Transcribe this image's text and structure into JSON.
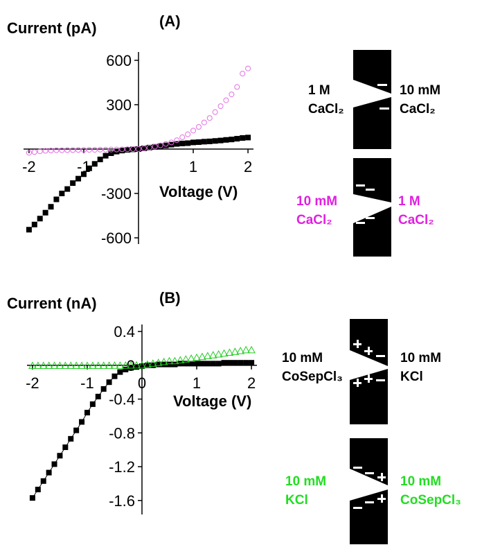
{
  "chart_data": [
    {
      "type": "scatter",
      "panel_label": "(A)",
      "ylabel": "Current (pA)",
      "xlabel": "Voltage (V)",
      "x": [
        -2,
        -1.9,
        -1.8,
        -1.7,
        -1.6,
        -1.5,
        -1.4,
        -1.3,
        -1.2,
        -1.1,
        -1,
        -0.9,
        -0.8,
        -0.7,
        -0.6,
        -0.5,
        -0.4,
        -0.3,
        -0.2,
        -0.1,
        0,
        0.1,
        0.2,
        0.3,
        0.4,
        0.5,
        0.6,
        0.7,
        0.8,
        0.9,
        1,
        1.1,
        1.2,
        1.3,
        1.4,
        1.5,
        1.6,
        1.7,
        1.8,
        1.9,
        2
      ],
      "series": [
        {
          "color": "#000000",
          "marker": "square",
          "filled": true,
          "line": false,
          "values": [
            -545,
            -510,
            -470,
            -430,
            -390,
            -340,
            -300,
            -270,
            -230,
            -200,
            -170,
            -130,
            -100,
            -70,
            -45,
            -28,
            -17,
            -10,
            -5,
            -2,
            0,
            5,
            10,
            15,
            20,
            25,
            30,
            35,
            38,
            40,
            45,
            47,
            50,
            52,
            55,
            58,
            62,
            65,
            70,
            75,
            78
          ]
        },
        {
          "color": "#e070e0",
          "marker": "circle",
          "filled": false,
          "line": false,
          "values": [
            -25,
            -20,
            -15,
            -12,
            -10,
            -8,
            -8,
            -7,
            -7,
            -6,
            -6,
            -5,
            -5,
            -4,
            -4,
            -3,
            -3,
            -2,
            -1,
            0,
            0,
            5,
            10,
            17,
            25,
            35,
            45,
            60,
            80,
            100,
            125,
            150,
            180,
            210,
            250,
            290,
            330,
            370,
            420,
            510,
            545
          ]
        }
      ],
      "xlim": [
        -2.1,
        2.1
      ],
      "xticks": [
        -2,
        -1,
        1,
        2
      ],
      "ylim": [
        -600,
        600
      ],
      "yticks": [
        600,
        300,
        -300,
        -600
      ],
      "diagrams": [
        {
          "color": "#000000",
          "left": [
            "1 M",
            "CaCl₂"
          ],
          "right": [
            "10 mM",
            "CaCl₂"
          ]
        },
        {
          "color": "#e020e0",
          "left": [
            "10 mM",
            "CaCl₂"
          ],
          "right": [
            "1 M",
            "CaCl₂"
          ]
        }
      ]
    },
    {
      "type": "scatter",
      "panel_label": "(B)",
      "ylabel": "Current (nA)",
      "xlabel": "Voltage (V)",
      "x": [
        -2,
        -1.9,
        -1.8,
        -1.7,
        -1.6,
        -1.5,
        -1.4,
        -1.3,
        -1.2,
        -1.1,
        -1,
        -0.9,
        -0.8,
        -0.7,
        -0.6,
        -0.5,
        -0.4,
        -0.3,
        -0.2,
        -0.1,
        0,
        0.1,
        0.2,
        0.3,
        0.4,
        0.5,
        0.6,
        0.7,
        0.8,
        0.9,
        1,
        1.1,
        1.2,
        1.3,
        1.4,
        1.5,
        1.6,
        1.7,
        1.8,
        1.9,
        2
      ],
      "series": [
        {
          "color": "#000000",
          "marker": "square",
          "filled": true,
          "line": true,
          "values": [
            -1.57,
            -1.47,
            -1.37,
            -1.27,
            -1.17,
            -1.07,
            -0.97,
            -0.87,
            -0.77,
            -0.67,
            -0.56,
            -0.46,
            -0.37,
            -0.28,
            -0.2,
            -0.13,
            -0.08,
            -0.05,
            -0.03,
            -0.02,
            -0.01,
            0,
            0,
            0.01,
            0.01,
            0.01,
            0.01,
            0.02,
            0.02,
            0.02,
            0.02,
            0.02,
            0.02,
            0.02,
            0.02,
            0.03,
            0.03,
            0.03,
            0.03,
            0.03,
            0.03
          ]
        },
        {
          "color": "#22cc22",
          "marker": "triangle",
          "filled": false,
          "line": false,
          "values": [
            -0.005,
            -0.005,
            -0.005,
            -0.005,
            -0.005,
            -0.005,
            -0.005,
            -0.005,
            -0.005,
            -0.005,
            -0.005,
            -0.005,
            -0.005,
            -0.004,
            -0.004,
            -0.003,
            -0.003,
            -0.002,
            -0.001,
            0,
            0,
            0.01,
            0.02,
            0.03,
            0.04,
            0.05,
            0.05,
            0.06,
            0.07,
            0.08,
            0.09,
            0.1,
            0.11,
            0.12,
            0.13,
            0.14,
            0.15,
            0.16,
            0.17,
            0.18,
            0.18
          ]
        }
      ],
      "xlim": [
        -2.1,
        2.1
      ],
      "xticks": [
        -2,
        -1,
        0,
        1,
        2
      ],
      "ylim": [
        -1.7,
        0.45
      ],
      "yticks": [
        0.4,
        0,
        -0.4,
        -0.8,
        -1.2,
        -1.6
      ],
      "diagrams": [
        {
          "color": "#000000",
          "left": [
            "10 mM",
            "CoSepCl₃"
          ],
          "right": [
            "10 mM",
            "KCl"
          ]
        },
        {
          "color": "#22dd22",
          "left": [
            "10 mM",
            "KCl"
          ],
          "right": [
            "10 mM",
            "CoSepCl₃"
          ]
        }
      ]
    }
  ]
}
